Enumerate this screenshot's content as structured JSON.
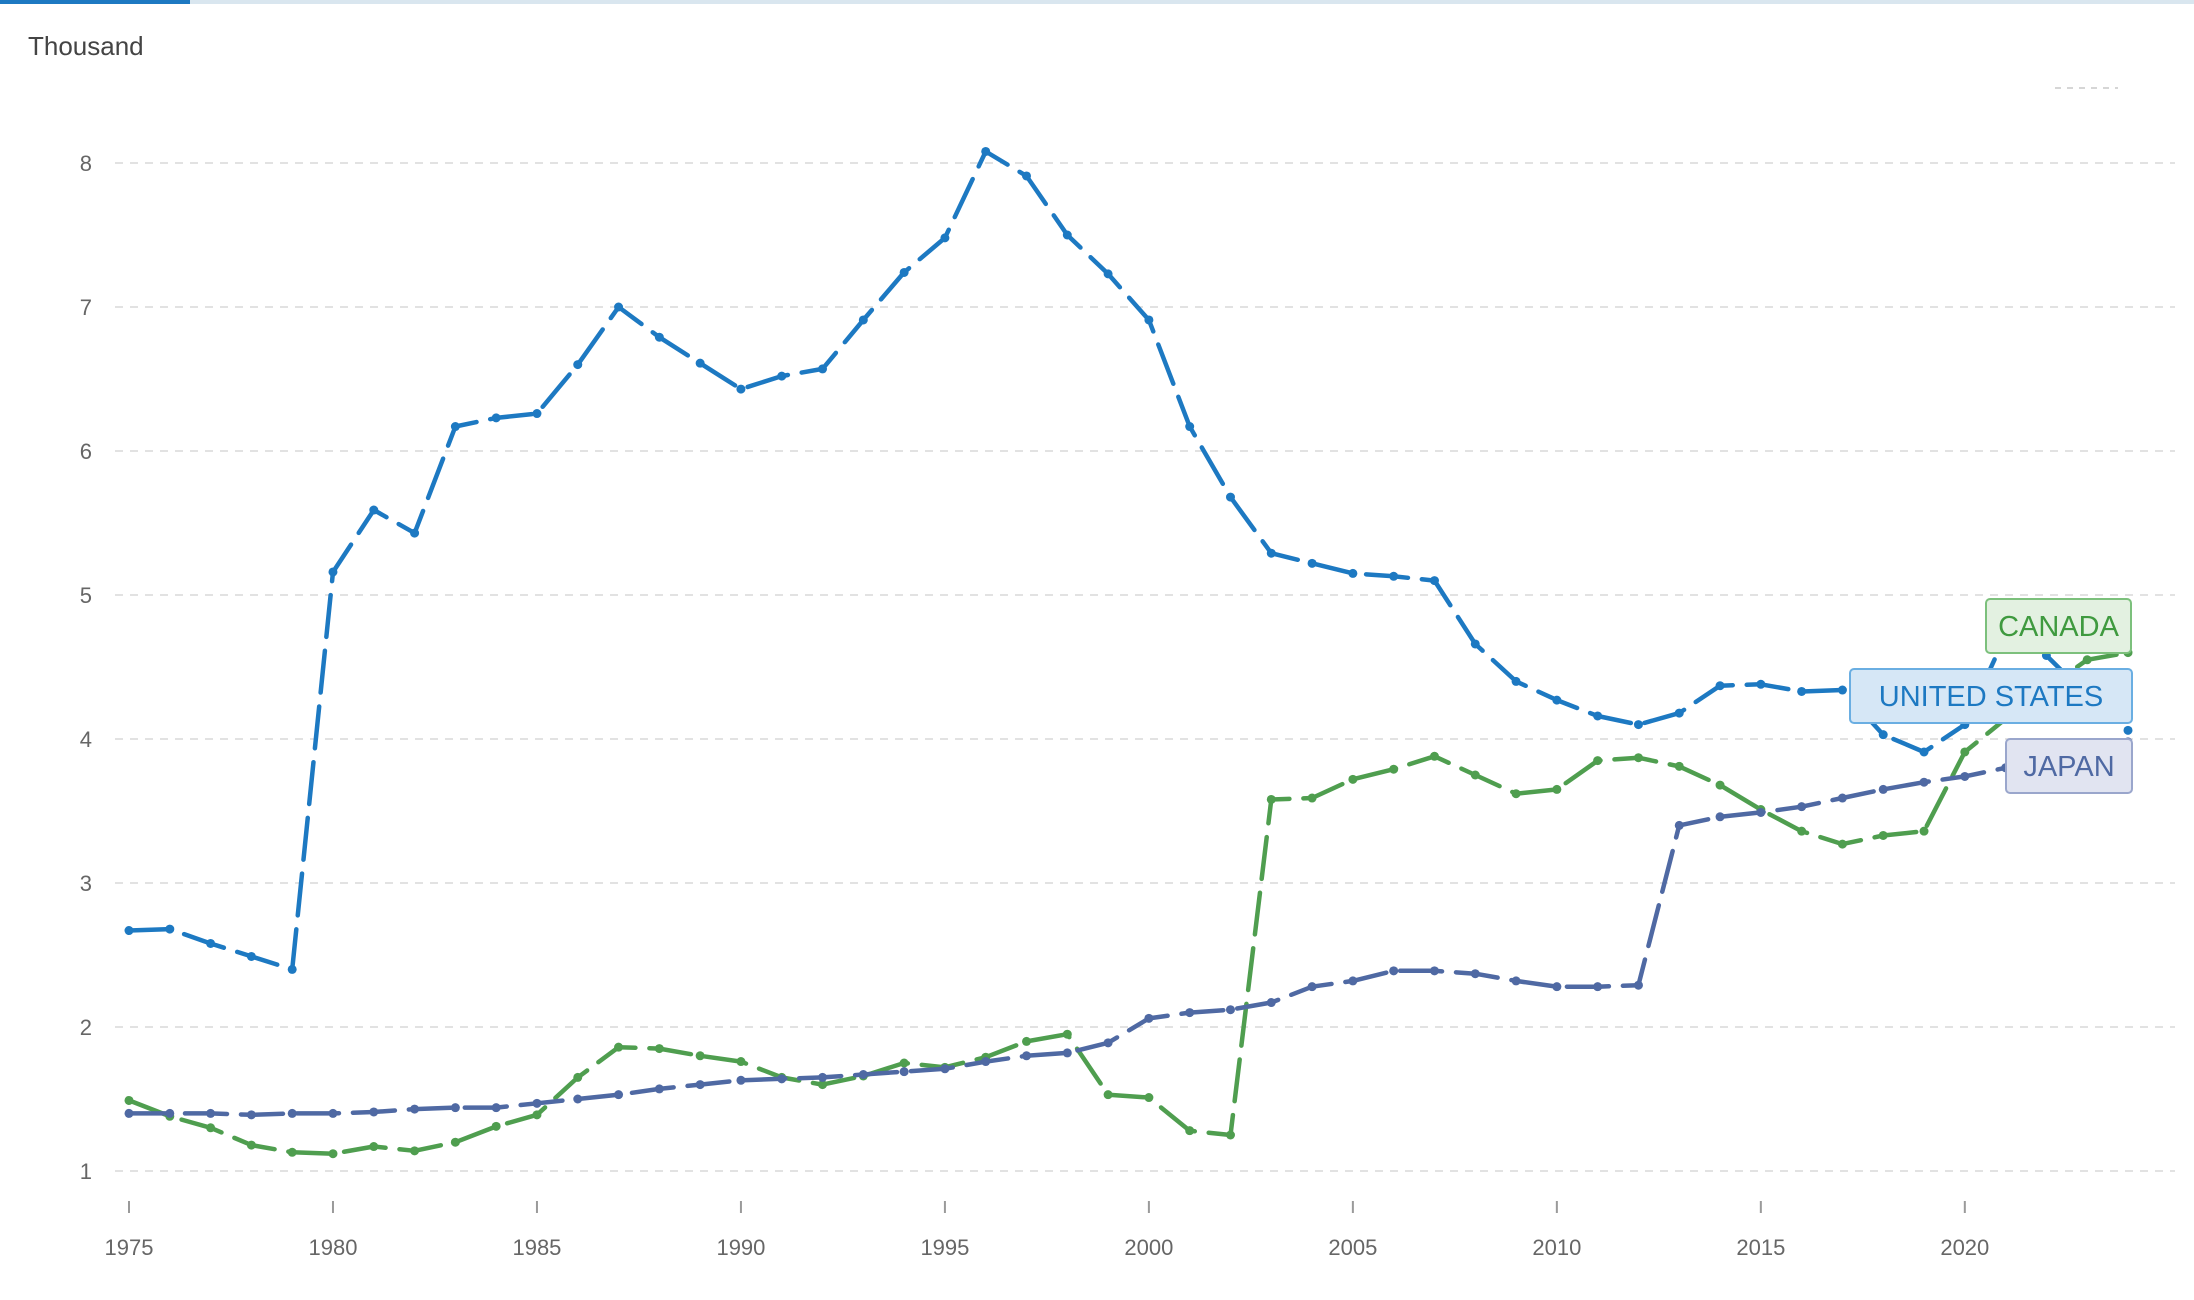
{
  "chart_data": {
    "type": "line",
    "ylabel": "Thousand",
    "ylim": [
      1,
      8
    ],
    "xlim": [
      1975,
      2024
    ],
    "grid": true,
    "grid_style": "dashed",
    "y_ticks": [
      "1",
      "2",
      "3",
      "4",
      "5",
      "6",
      "7",
      "8"
    ],
    "x_ticks": [
      "1975",
      "1980",
      "1985",
      "1990",
      "1995",
      "2000",
      "2005",
      "2010",
      "2015",
      "2020"
    ],
    "x": [
      1975,
      1976,
      1977,
      1978,
      1979,
      1980,
      1981,
      1982,
      1983,
      1984,
      1985,
      1986,
      1987,
      1988,
      1989,
      1990,
      1991,
      1992,
      1993,
      1994,
      1995,
      1996,
      1997,
      1998,
      1999,
      2000,
      2001,
      2002,
      2003,
      2004,
      2005,
      2006,
      2007,
      2008,
      2009,
      2010,
      2011,
      2012,
      2013,
      2014,
      2015,
      2016,
      2017,
      2018,
      2019,
      2020,
      2021,
      2022,
      2023,
      2024
    ],
    "series": [
      {
        "name": "UNITED STATES",
        "color": "#1d79c2",
        "values": [
          2.67,
          2.68,
          2.58,
          2.49,
          2.4,
          5.16,
          5.59,
          5.43,
          6.17,
          6.23,
          6.26,
          6.6,
          7.0,
          6.79,
          6.61,
          6.43,
          6.52,
          6.57,
          6.91,
          7.24,
          7.48,
          8.08,
          7.91,
          7.5,
          7.23,
          6.91,
          6.17,
          5.68,
          5.29,
          5.22,
          5.15,
          5.13,
          5.1,
          4.66,
          4.4,
          4.27,
          4.16,
          4.1,
          4.18,
          4.37,
          4.38,
          4.33,
          4.34,
          4.03,
          3.91,
          4.1,
          4.72,
          4.58,
          4.3,
          4.06
        ]
      },
      {
        "name": "CANADA",
        "color": "#4f9e4f",
        "values": [
          1.49,
          1.38,
          1.3,
          1.18,
          1.13,
          1.12,
          1.17,
          1.14,
          1.2,
          1.31,
          1.39,
          1.65,
          1.86,
          1.85,
          1.8,
          1.76,
          1.65,
          1.6,
          1.66,
          1.75,
          1.72,
          1.79,
          1.9,
          1.95,
          1.53,
          1.51,
          1.28,
          1.25,
          3.58,
          3.59,
          3.72,
          3.79,
          3.88,
          3.75,
          3.62,
          3.65,
          3.85,
          3.87,
          3.81,
          3.68,
          3.51,
          3.36,
          3.27,
          3.33,
          3.36,
          3.91,
          4.14,
          4.35,
          4.55,
          4.6
        ]
      },
      {
        "name": "JAPAN",
        "color": "#4f69a3",
        "values": [
          1.4,
          1.4,
          1.4,
          1.39,
          1.4,
          1.4,
          1.41,
          1.43,
          1.44,
          1.44,
          1.47,
          1.5,
          1.53,
          1.57,
          1.6,
          1.63,
          1.64,
          1.65,
          1.67,
          1.69,
          1.71,
          1.76,
          1.8,
          1.82,
          1.89,
          2.06,
          2.1,
          2.12,
          2.17,
          2.28,
          2.32,
          2.39,
          2.39,
          2.37,
          2.32,
          2.28,
          2.28,
          2.29,
          3.4,
          3.46,
          3.49,
          3.53,
          3.59,
          3.65,
          3.7,
          3.74,
          3.8,
          3.87,
          3.93,
          3.98
        ]
      }
    ],
    "labels": [
      {
        "series": "CANADA",
        "text": "CANADA",
        "color": "#3f9a3f",
        "fill": "#e3f1e1",
        "stroke": "#7cc07c"
      },
      {
        "series": "UNITED STATES",
        "text": "UNITED STATES",
        "color": "#1d79c2",
        "fill": "#d6e7f6",
        "stroke": "#6aaee2"
      },
      {
        "series": "JAPAN",
        "text": "JAPAN",
        "color": "#4f69a3",
        "fill": "#e1e4f1",
        "stroke": "#9aa6cc"
      }
    ]
  }
}
